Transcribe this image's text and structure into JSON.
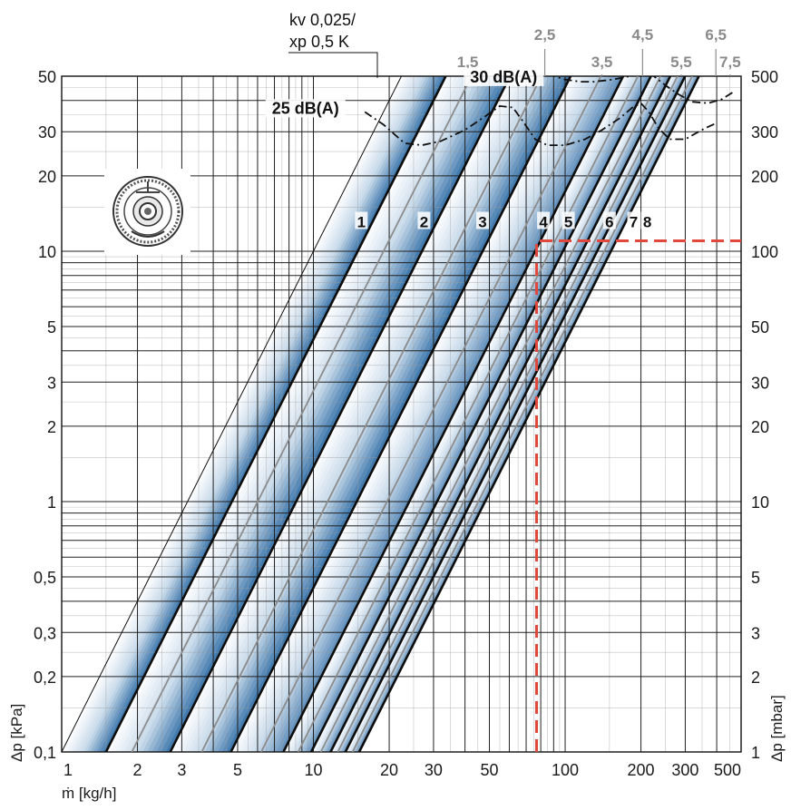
{
  "chart_data": {
    "type": "line",
    "scale": "log-log",
    "xlabel": "ṁ [kg/h]",
    "ylabel_left": "Δp [kPa]",
    "ylabel_right": "Δp [mbar]",
    "xlim": [
      1,
      500
    ],
    "ylim": [
      0.1,
      50
    ],
    "grid": true,
    "x_ticks": [
      {
        "v": 1,
        "t": "1"
      },
      {
        "v": 2,
        "t": "2"
      },
      {
        "v": 3,
        "t": "3"
      },
      {
        "v": 5,
        "t": "5"
      },
      {
        "v": 10,
        "t": "10"
      },
      {
        "v": 20,
        "t": "20"
      },
      {
        "v": 30,
        "t": "30"
      },
      {
        "v": 50,
        "t": "50"
      },
      {
        "v": 100,
        "t": "100"
      },
      {
        "v": 200,
        "t": "200"
      },
      {
        "v": 300,
        "t": "300"
      },
      {
        "v": 500,
        "t": "500"
      }
    ],
    "y_ticks_left": [
      {
        "v": 0.1,
        "t": "0,1"
      },
      {
        "v": 0.2,
        "t": "0,2"
      },
      {
        "v": 0.3,
        "t": "0,3"
      },
      {
        "v": 0.5,
        "t": "0,5"
      },
      {
        "v": 1,
        "t": "1"
      },
      {
        "v": 2,
        "t": "2"
      },
      {
        "v": 3,
        "t": "3"
      },
      {
        "v": 5,
        "t": "5"
      },
      {
        "v": 10,
        "t": "10"
      },
      {
        "v": 20,
        "t": "20"
      },
      {
        "v": 30,
        "t": "30"
      },
      {
        "v": 50,
        "t": "50"
      }
    ],
    "y_ticks_right": [
      {
        "v": 0.1,
        "t": "1"
      },
      {
        "v": 0.2,
        "t": "2"
      },
      {
        "v": 0.3,
        "t": "3"
      },
      {
        "v": 0.5,
        "t": "5"
      },
      {
        "v": 1,
        "t": "10"
      },
      {
        "v": 2,
        "t": "20"
      },
      {
        "v": 3,
        "t": "30"
      },
      {
        "v": 5,
        "t": "50"
      },
      {
        "v": 10,
        "t": "100"
      },
      {
        "v": 20,
        "t": "200"
      },
      {
        "v": 30,
        "t": "300"
      },
      {
        "v": 50,
        "t": "500"
      }
    ],
    "reference_line": {
      "label_line1": "kv 0,025/",
      "label_line2": "xp 0,5 K",
      "x_at_ymin": 1.0
    },
    "series": [
      {
        "name": "1",
        "x_at_ymin": 1.5,
        "bold": true
      },
      {
        "name": "1,5",
        "x_at_ymin": 1.9,
        "bold": false
      },
      {
        "name": "2",
        "x_at_ymin": 2.7,
        "bold": true
      },
      {
        "name": "2,5",
        "x_at_ymin": 3.6,
        "bold": false
      },
      {
        "name": "3",
        "x_at_ymin": 4.7,
        "bold": true
      },
      {
        "name": "3,5",
        "x_at_ymin": 6.2,
        "bold": false
      },
      {
        "name": "4",
        "x_at_ymin": 7.6,
        "bold": true
      },
      {
        "name": "4,5",
        "x_at_ymin": 8.7,
        "bold": false
      },
      {
        "name": "5",
        "x_at_ymin": 9.8,
        "bold": true
      },
      {
        "name": "5,5",
        "x_at_ymin": 10.7,
        "bold": false
      },
      {
        "name": "6",
        "x_at_ymin": 11.7,
        "bold": true
      },
      {
        "name": "6,5",
        "x_at_ymin": 12.5,
        "bold": false
      },
      {
        "name": "7",
        "x_at_ymin": 13.4,
        "bold": true
      },
      {
        "name": "7,5",
        "x_at_ymin": 14.3,
        "bold": false
      },
      {
        "name": "8",
        "x_at_ymin": 15.2,
        "bold": true
      }
    ],
    "curve_labels": [
      {
        "text": "1",
        "x": 15.5,
        "y": 13
      },
      {
        "text": "2",
        "x": 27.5,
        "y": 13
      },
      {
        "text": "3",
        "x": 47,
        "y": 13
      },
      {
        "text": "4",
        "x": 82,
        "y": 13
      },
      {
        "text": "5",
        "x": 103,
        "y": 13
      },
      {
        "text": "6",
        "x": 150,
        "y": 13
      },
      {
        "text": "7",
        "x": 187,
        "y": 13
      },
      {
        "text": "8",
        "x": 212,
        "y": 13
      }
    ],
    "setting_labels": [
      {
        "text": "1,5",
        "x": 41,
        "r": 1
      },
      {
        "text": "2,5",
        "x": 83,
        "r": 0
      },
      {
        "text": "3,5",
        "x": 140,
        "r": 1
      },
      {
        "text": "4,5",
        "x": 203,
        "r": 0
      },
      {
        "text": "5,5",
        "x": 289,
        "r": 1
      },
      {
        "text": "6,5",
        "x": 397,
        "r": 0
      },
      {
        "text": "7,5",
        "x": 452,
        "r": 1
      }
    ],
    "noise_lines": [
      {
        "label": "25 dB(A)",
        "label_x": 9.3,
        "label_y": 36,
        "points": [
          [
            16,
            36
          ],
          [
            19,
            32
          ],
          [
            23,
            27
          ],
          [
            27,
            26.5
          ],
          [
            32,
            27.5
          ],
          [
            40,
            30.5
          ],
          [
            48,
            34.5
          ],
          [
            55,
            38
          ],
          [
            62,
            37.5
          ],
          [
            68,
            33
          ],
          [
            76,
            28
          ],
          [
            85,
            26.5
          ],
          [
            100,
            26.5
          ],
          [
            120,
            28
          ],
          [
            140,
            30.5
          ],
          [
            165,
            34
          ],
          [
            185,
            37.5
          ],
          [
            200,
            39
          ],
          [
            215,
            36
          ],
          [
            235,
            31
          ],
          [
            260,
            28
          ],
          [
            300,
            28
          ],
          [
            360,
            31
          ],
          [
            400,
            32.5
          ]
        ]
      },
      {
        "label": "30 dB(A)",
        "label_x": 57,
        "label_y": 48,
        "points": [
          [
            85,
            51
          ],
          [
            100,
            48.5
          ],
          [
            115,
            47.5
          ],
          [
            130,
            47.5
          ],
          [
            155,
            48.5
          ],
          [
            180,
            50
          ],
          [
            205,
            51.5
          ],
          [
            225,
            50
          ],
          [
            250,
            46
          ],
          [
            280,
            42.5
          ],
          [
            320,
            39.5
          ],
          [
            370,
            39
          ],
          [
            420,
            40.5
          ],
          [
            470,
            43.5
          ]
        ]
      }
    ],
    "operating_point": {
      "x": 77,
      "y": 11
    }
  }
}
